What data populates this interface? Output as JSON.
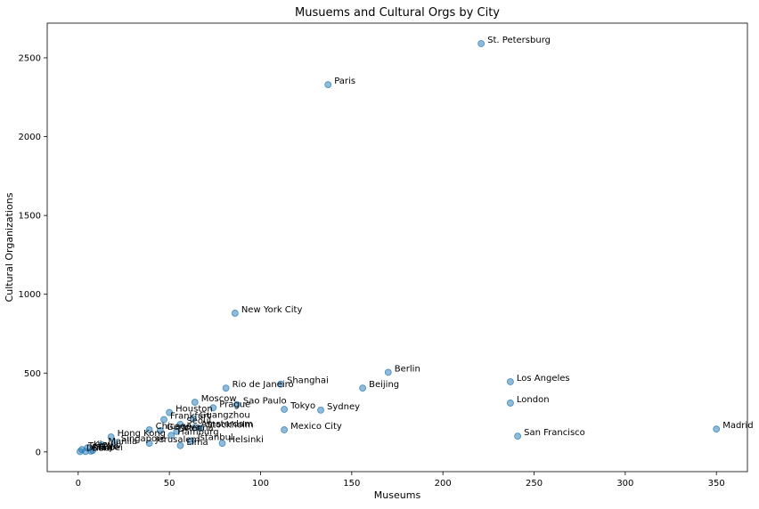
{
  "colors": {
    "point_fill": "#1f77b4",
    "point_alpha": 0.5,
    "axis": "#000000",
    "background": "#ffffff"
  },
  "chart_data": {
    "type": "scatter",
    "title": "Musuems and Cultural Orgs by City",
    "xlabel": "Museums",
    "ylabel": "Cultural Organizations",
    "xlim": [
      -17,
      367
    ],
    "ylim": [
      -125,
      2720
    ],
    "xticks": [
      0,
      50,
      100,
      150,
      200,
      250,
      300,
      350
    ],
    "yticks": [
      0,
      500,
      1000,
      1500,
      2000,
      2500
    ],
    "grid": false,
    "legend": null,
    "points": [
      {
        "label": "St. Petersburg",
        "x": 221,
        "y": 2590
      },
      {
        "label": "Paris",
        "x": 137,
        "y": 2330
      },
      {
        "label": "New York City",
        "x": 86,
        "y": 880
      },
      {
        "label": "Berlin",
        "x": 170,
        "y": 505
      },
      {
        "label": "Los Angeles",
        "x": 237,
        "y": 445
      },
      {
        "label": "Shanghai",
        "x": 111,
        "y": 430
      },
      {
        "label": "Rio de Janeiro",
        "x": 81,
        "y": 405
      },
      {
        "label": "Beijing",
        "x": 156,
        "y": 405
      },
      {
        "label": "London",
        "x": 237,
        "y": 310
      },
      {
        "label": "Moscow",
        "x": 64,
        "y": 315
      },
      {
        "label": "Sao Paulo",
        "x": 87,
        "y": 300
      },
      {
        "label": "Prague",
        "x": 74,
        "y": 280
      },
      {
        "label": "Tokyo",
        "x": 113,
        "y": 270
      },
      {
        "label": "Sydney",
        "x": 133,
        "y": 265
      },
      {
        "label": "Houston",
        "x": 50,
        "y": 250
      },
      {
        "label": "Frankfurt",
        "x": 47,
        "y": 205
      },
      {
        "label": "Guangzhou",
        "x": 63,
        "y": 210
      },
      {
        "label": "Seoul",
        "x": 56,
        "y": 175
      },
      {
        "label": "Amsterdam",
        "x": 64,
        "y": 155
      },
      {
        "label": "Stockholm",
        "x": 67,
        "y": 150
      },
      {
        "label": "Mexico City",
        "x": 113,
        "y": 140
      },
      {
        "label": "Madrid",
        "x": 350,
        "y": 145
      },
      {
        "label": "Chicago",
        "x": 39,
        "y": 140
      },
      {
        "label": "Geneva",
        "x": 45,
        "y": 135
      },
      {
        "label": "Vienna",
        "x": 54,
        "y": 130
      },
      {
        "label": "Hamburg",
        "x": 51,
        "y": 105
      },
      {
        "label": "San Francisco",
        "x": 241,
        "y": 100
      },
      {
        "label": "Hong Kong",
        "x": 18,
        "y": 95
      },
      {
        "label": "Istanbul",
        "x": 62,
        "y": 70
      },
      {
        "label": "Helsinki",
        "x": 79,
        "y": 55
      },
      {
        "label": "Singapore",
        "x": 20,
        "y": 60
      },
      {
        "label": "Jerusalem",
        "x": 39,
        "y": 55
      },
      {
        "label": "Lima",
        "x": 56,
        "y": 40
      },
      {
        "label": "Manila",
        "x": 13,
        "y": 45
      },
      {
        "label": "Kiev",
        "x": 5,
        "y": 25
      },
      {
        "label": "Tel Aviv",
        "x": 2,
        "y": 15
      },
      {
        "label": "Taipei",
        "x": 7,
        "y": 5
      },
      {
        "label": "Bern",
        "x": 4,
        "y": 3
      },
      {
        "label": "Oslo",
        "x": 8,
        "y": 10
      },
      {
        "label": "Dubai",
        "x": 1,
        "y": 2
      }
    ]
  }
}
